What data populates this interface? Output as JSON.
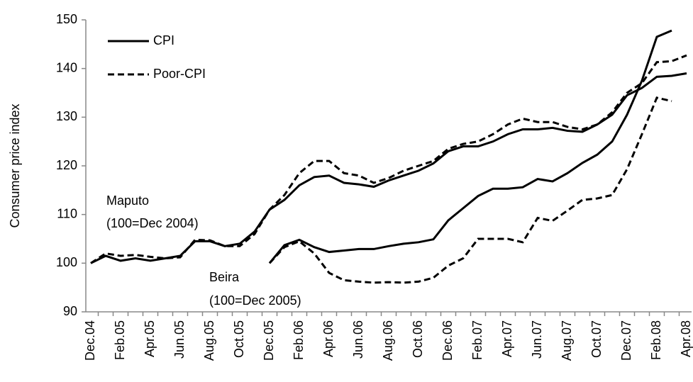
{
  "chart_data": {
    "type": "line",
    "y_label": "Consumer price index",
    "categories": [
      "Dec.04",
      null,
      "Feb.05",
      null,
      "Apr.05",
      null,
      "Jun.05",
      null,
      "Aug.05",
      null,
      "Oct.05",
      null,
      "Dec.05",
      null,
      "Feb.06",
      null,
      "Apr.06",
      null,
      "Jun.06",
      null,
      "Aug.06",
      null,
      "Oct.06",
      null,
      "Dec.06",
      null,
      "Feb.07",
      null,
      "Apr.07",
      null,
      "Jun.07",
      null,
      "Aug.07",
      null,
      "Oct.07",
      null,
      "Dec.07",
      null,
      "Feb.08",
      null,
      "Apr.08"
    ],
    "series": [
      {
        "name": "CPI",
        "dashed": false,
        "color": "#000000",
        "values": [
          100,
          101.5,
          100.5,
          101,
          100.5,
          101,
          101.5,
          104.5,
          104.5,
          103.5,
          104,
          106.5,
          111,
          113,
          116,
          117.7,
          118,
          116.5,
          116.2,
          115.7,
          117,
          118,
          119,
          120.5,
          123,
          124,
          124,
          125,
          126.5,
          127.5,
          127.5,
          127.8,
          127.2,
          127,
          128.5,
          130.5,
          134.5,
          136,
          138.3,
          138.5,
          139
        ]
      },
      {
        "name": "Poor-CPI",
        "dashed": true,
        "color": "#000000",
        "values": [
          100,
          102,
          101.5,
          101.7,
          101.3,
          101,
          101.2,
          104.8,
          104.7,
          103.5,
          103.5,
          106,
          111,
          114,
          118.5,
          121,
          121,
          118.5,
          118,
          116.5,
          117.5,
          119,
          120,
          121,
          123.5,
          124.5,
          125,
          126.5,
          128.5,
          129.7,
          129,
          129,
          128,
          127.5,
          128.5,
          131,
          135,
          137,
          141.3,
          141.5,
          142.7
        ]
      },
      {
        "dashed": false,
        "color": "#000000",
        "values": [
          null,
          null,
          null,
          null,
          null,
          null,
          null,
          null,
          null,
          null,
          null,
          null,
          100,
          103.7,
          104.8,
          103.3,
          102.3,
          102.6,
          102.9,
          102.9,
          103.5,
          104,
          104.3,
          104.9,
          108.8,
          111.3,
          113.8,
          115.3,
          115.3,
          115.6,
          117.3,
          116.8,
          118.5,
          120.6,
          122.3,
          125,
          130.5,
          137.5,
          146.5,
          147.8,
          null
        ]
      },
      {
        "dashed": true,
        "color": "#000000",
        "values": [
          null,
          null,
          null,
          null,
          null,
          null,
          null,
          null,
          null,
          null,
          null,
          null,
          100,
          103.3,
          104.5,
          102,
          98,
          96.5,
          96.2,
          96,
          96.1,
          96,
          96.2,
          97,
          99.5,
          101,
          105,
          105,
          105,
          104.3,
          109.3,
          108.7,
          110.8,
          113,
          113.3,
          114,
          119.3,
          126.5,
          134,
          133.3,
          null
        ]
      }
    ],
    "annotations": [
      [
        "Maputo",
        "(100=Dec 2004)"
      ],
      [
        "Beira",
        "(100=Dec 2005)"
      ]
    ],
    "ylim": [
      90,
      150
    ],
    "yticks": [
      90,
      100,
      110,
      120,
      130,
      140,
      150
    ]
  }
}
